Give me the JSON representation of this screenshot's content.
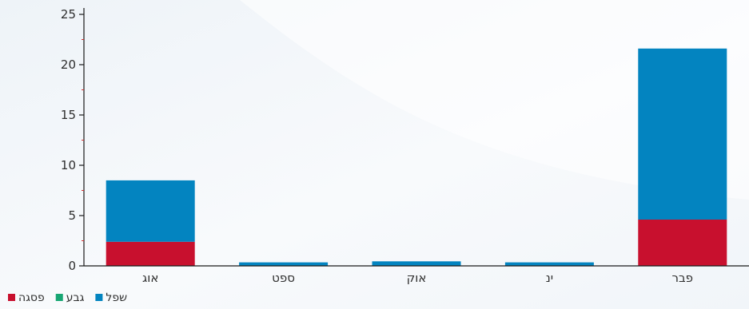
{
  "chart_data": {
    "type": "bar",
    "stacked": true,
    "categories": [
      "אוג",
      "ספט",
      "אוק",
      "ינ",
      "פבר"
    ],
    "series": [
      {
        "name": "פסגה",
        "color": "#c8102e",
        "values": [
          2.4,
          0,
          0,
          0,
          4.6
        ]
      },
      {
        "name": "גבע",
        "color": "#17a673",
        "values": [
          0,
          0,
          0,
          0,
          0
        ]
      },
      {
        "name": "שפל",
        "color": "#0384c0",
        "values": [
          6.1,
          0.35,
          0.45,
          0.35,
          17.0
        ]
      }
    ],
    "ylim": [
      0,
      25
    ],
    "yticks": [
      0,
      5,
      10,
      15,
      20,
      25
    ],
    "title": "",
    "xlabel": "",
    "ylabel": "",
    "legend_position": "bottom-left",
    "grid": false
  },
  "colors": {
    "axis": "#1a1a1a",
    "minor_tick": "#d32f2f",
    "background": "#f5f8fb"
  }
}
